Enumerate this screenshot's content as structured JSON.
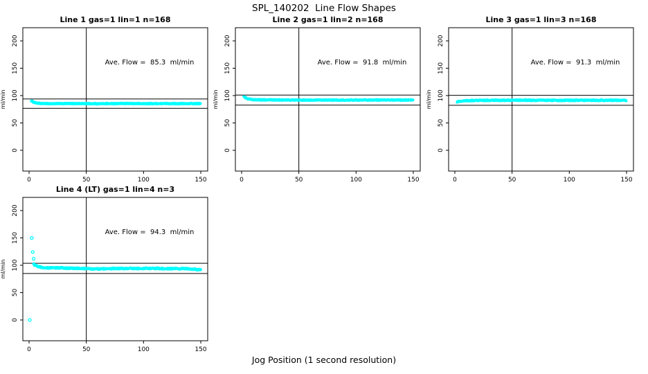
{
  "page": {
    "main_title": "SPL_140202  Line Flow Shapes",
    "x_axis_label": "Jog Position (1 second resolution)"
  },
  "colors": {
    "points": "#00FFFF",
    "axis": "#000000",
    "background": "#FFFFFF"
  },
  "chart_data": [
    {
      "type": "scatter",
      "title": "Line 1 gas=1 lin=1 n=168",
      "ylabel": "ml/min",
      "annotation": "Ave. Flow =  85.3  ml/min",
      "ave_flow_ml_min": 85.3,
      "n": 168,
      "x_ticks": [
        0,
        50,
        100,
        150
      ],
      "y_ticks": [
        0,
        50,
        100,
        150,
        200
      ],
      "xlim": [
        0,
        150
      ],
      "ylim": [
        -38,
        224
      ],
      "ref_lines_y": [
        93.8,
        76.8
      ],
      "vline_x": 50,
      "series": [
        {
          "name": "flow",
          "keypoints": [
            [
              2,
              90.5
            ],
            [
              4,
              88
            ],
            [
              6,
              86.5
            ],
            [
              10,
              85.5
            ],
            [
              20,
              85.2
            ],
            [
              40,
              85.4
            ],
            [
              60,
              85.1
            ],
            [
              80,
              85.5
            ],
            [
              100,
              85.2
            ],
            [
              120,
              85.4
            ],
            [
              135,
              85.2
            ],
            [
              150,
              85.3
            ]
          ],
          "noise": 1.6
        }
      ],
      "outliers": []
    },
    {
      "type": "scatter",
      "title": "Line 2 gas=1 lin=2 n=168",
      "ylabel": "ml/min",
      "annotation": "Ave. Flow =  91.8  ml/min",
      "ave_flow_ml_min": 91.8,
      "n": 168,
      "x_ticks": [
        0,
        50,
        100,
        150
      ],
      "y_ticks": [
        0,
        50,
        100,
        150,
        200
      ],
      "xlim": [
        0,
        150
      ],
      "ylim": [
        -38,
        224
      ],
      "ref_lines_y": [
        101.0,
        82.6
      ],
      "vline_x": 50,
      "series": [
        {
          "name": "flow",
          "keypoints": [
            [
              2,
              97.5
            ],
            [
              3,
              96.5
            ],
            [
              5,
              94.5
            ],
            [
              8,
              93
            ],
            [
              12,
              92.3
            ],
            [
              25,
              92
            ],
            [
              50,
              91.8
            ],
            [
              80,
              91.8
            ],
            [
              110,
              91.9
            ],
            [
              150,
              91.8
            ]
          ],
          "noise": 1.6
        }
      ],
      "outliers": []
    },
    {
      "type": "scatter",
      "title": "Line 3 gas=1 lin=3 n=168",
      "ylabel": "ml/min",
      "annotation": "Ave. Flow =  91.3  ml/min",
      "ave_flow_ml_min": 91.3,
      "n": 168,
      "x_ticks": [
        0,
        50,
        100,
        150
      ],
      "y_ticks": [
        0,
        50,
        100,
        150,
        200
      ],
      "xlim": [
        0,
        150
      ],
      "ylim": [
        -38,
        224
      ],
      "ref_lines_y": [
        100.4,
        82.2
      ],
      "vline_x": 50,
      "series": [
        {
          "name": "flow",
          "keypoints": [
            [
              2,
              88.5
            ],
            [
              4,
              89.5
            ],
            [
              8,
              90.5
            ],
            [
              15,
              91
            ],
            [
              30,
              91.3
            ],
            [
              60,
              91.5
            ],
            [
              90,
              91.2
            ],
            [
              120,
              91.5
            ],
            [
              150,
              91.3
            ]
          ],
          "noise": 1.8
        }
      ],
      "outliers": []
    },
    {
      "type": "scatter",
      "title": "Line 4 (LT) gas=1 lin=4 n=3",
      "ylabel": "ml/min",
      "annotation": "Ave. Flow =  94.3  ml/min",
      "ave_flow_ml_min": 94.3,
      "n": 3,
      "x_ticks": [
        0,
        50,
        100,
        150
      ],
      "y_ticks": [
        0,
        50,
        100,
        150,
        200
      ],
      "xlim": [
        0,
        150
      ],
      "ylim": [
        -38,
        224
      ],
      "ref_lines_y": [
        103.7,
        84.9
      ],
      "vline_x": 50,
      "series": [
        {
          "name": "flow",
          "keypooints_note": "",
          "keypoints": [
            [
              4,
              103
            ],
            [
              5,
              100.5
            ],
            [
              7,
              98.5
            ],
            [
              9,
              97
            ],
            [
              12,
              96
            ],
            [
              16,
              95.3
            ],
            [
              22,
              95
            ],
            [
              28,
              95.3
            ],
            [
              34,
              94.3
            ],
            [
              40,
              94.6
            ],
            [
              46,
              94.2
            ],
            [
              52,
              93.6
            ],
            [
              58,
              93.2
            ],
            [
              64,
              93.5
            ],
            [
              70,
              93.8
            ],
            [
              76,
              94.3
            ],
            [
              82,
              94
            ],
            [
              88,
              94.5
            ],
            [
              94,
              94
            ],
            [
              100,
              94.4
            ],
            [
              106,
              94
            ],
            [
              112,
              94.3
            ],
            [
              118,
              93.7
            ],
            [
              124,
              93.9
            ],
            [
              130,
              93.6
            ],
            [
              136,
              94
            ],
            [
              142,
              93.2
            ],
            [
              146,
              92.5
            ],
            [
              150,
              91.3
            ]
          ],
          "noise": 2.2
        }
      ],
      "outliers": [
        [
          0.6,
          0
        ],
        [
          2.4,
          150
        ],
        [
          3.2,
          124
        ],
        [
          4,
          112
        ]
      ]
    }
  ]
}
